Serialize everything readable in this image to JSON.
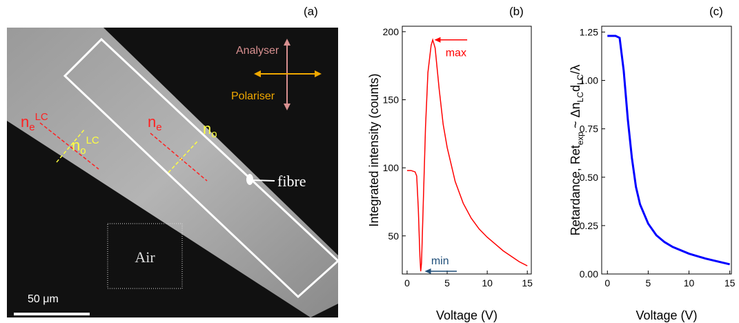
{
  "panel_a": {
    "label": "(a)",
    "analyser": "Analyser",
    "polariser": "Polariser",
    "ne_lc": {
      "base": "n",
      "sub": "e",
      "sup": "LC"
    },
    "no_lc": {
      "base": "n",
      "sub": "o",
      "sup": "LC"
    },
    "ne": {
      "base": "n",
      "sub": "e"
    },
    "no": {
      "base": "n",
      "sub": "o"
    },
    "fibre": "fibre",
    "air": "Air",
    "scale_bar": "50 μm"
  },
  "chart_data": [
    {
      "type": "line",
      "panel_label": "(b)",
      "xlabel": "Voltage (V)",
      "ylabel": [
        "Integrated intensity (counts)"
      ],
      "x": [
        0,
        0.5,
        1.0,
        1.2,
        1.4,
        1.6,
        1.7,
        1.8,
        2.0,
        2.3,
        2.6,
        3.0,
        3.2,
        3.5,
        4,
        4.5,
        5,
        6,
        7,
        8,
        9,
        10,
        11,
        12,
        13,
        14,
        15
      ],
      "series": [
        {
          "color": "#ff0000",
          "values": [
            98,
            98,
            97,
            94,
            70,
            35,
            24,
            30,
            70,
            130,
            170,
            190,
            194,
            188,
            158,
            132,
            115,
            90,
            74,
            63,
            55,
            49,
            44,
            39,
            35,
            31,
            28
          ]
        }
      ],
      "xlim": [
        -0.6,
        15.5
      ],
      "ylim": [
        22,
        204
      ],
      "xticks": [
        0,
        5,
        10,
        15
      ],
      "yticks": [
        50,
        100,
        150,
        200
      ],
      "annotations": [
        {
          "text": "max",
          "color": "#ff0000"
        },
        {
          "text": "min",
          "color": "#1f4e79"
        }
      ]
    },
    {
      "type": "line",
      "panel_label": "(c)",
      "xlabel": "Voltage (V)",
      "ylabel": [
        "Retardance, Ret",
        "exp",
        " ~ Δn",
        "LC",
        "d",
        "LC",
        "/λ"
      ],
      "x": [
        0,
        0.5,
        1.0,
        1.5,
        2.0,
        2.5,
        3.0,
        3.5,
        4,
        5,
        6,
        7,
        8,
        10,
        12,
        15
      ],
      "series": [
        {
          "color": "#0000ff",
          "values": [
            1.23,
            1.23,
            1.23,
            1.22,
            1.05,
            0.8,
            0.6,
            0.45,
            0.36,
            0.26,
            0.2,
            0.165,
            0.14,
            0.105,
            0.08,
            0.05
          ]
        }
      ],
      "xlim": [
        -0.7,
        15.2
      ],
      "ylim": [
        0,
        1.28
      ],
      "xticks": [
        0,
        5,
        10,
        15
      ],
      "yticks": [
        {
          "value": 0,
          "label": "0.00"
        },
        {
          "value": 0.25,
          "label": "0.25"
        },
        {
          "value": 0.5,
          "label": "0.50"
        },
        {
          "value": 0.75,
          "label": "0.75"
        },
        {
          "value": 1,
          "label": "1.00"
        },
        {
          "value": 1.25,
          "label": "1.25"
        }
      ]
    }
  ]
}
